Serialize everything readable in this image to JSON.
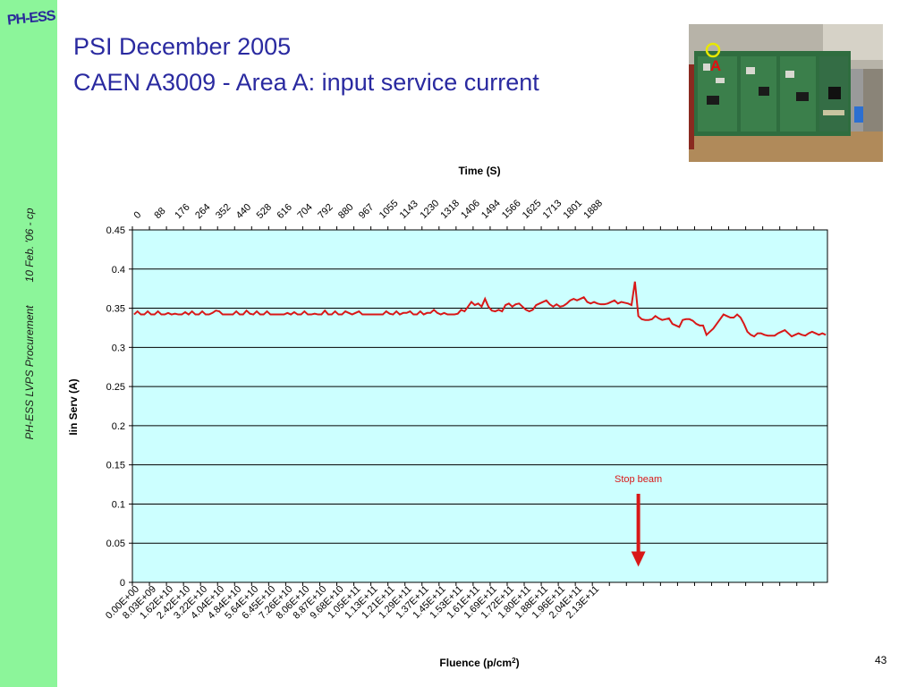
{
  "sidebar": {
    "logo_text": "PH-ESS",
    "vertical_text": "PH-ESS LVPS Procurement",
    "vertical_date": "10 Feb. '06 - cp"
  },
  "title": {
    "line1": "PSI December 2005",
    "line2": "CAEN A3009 - Area A: input service current"
  },
  "photo": {
    "annotation_label": "A",
    "circle_color": "#e8e800",
    "label_color": "#e01010"
  },
  "page_number": "43",
  "colors": {
    "plot_background": "#ccffff",
    "series": "#d81818",
    "annotation": "#d81818",
    "title": "#2a2aa0",
    "sidebar": "#8cf59a"
  },
  "chart_data": {
    "type": "line",
    "top_axis_title": "Time (S)",
    "top_ticks": [
      "0",
      "88",
      "176",
      "264",
      "352",
      "440",
      "528",
      "616",
      "704",
      "792",
      "880",
      "967",
      "1055",
      "1143",
      "1230",
      "1318",
      "1406",
      "1494",
      "1566",
      "1625",
      "1713",
      "1801",
      "1888"
    ],
    "xlabel_prefix": "Fluence (p/cm",
    "xlabel_sup": "2",
    "xlabel_suffix": ")",
    "x_ticks": [
      "0.00E+00",
      "8.03E+09",
      "1.62E+10",
      "2.42E+10",
      "3.22E+10",
      "4.04E+10",
      "4.84E+10",
      "5.64E+10",
      "6.45E+10",
      "7.26E+10",
      "8.06E+10",
      "8.87E+10",
      "9.68E+10",
      "1.05E+11",
      "1.13E+11",
      "1.21E+11",
      "1.29E+11",
      "1.37E+11",
      "1.45E+11",
      "1.53E+11",
      "1.61E+11",
      "1.69E+11",
      "1.72E+11",
      "1.80E+11",
      "1.88E+11",
      "1.96E+11",
      "2.04E+11",
      "2.13E+11"
    ],
    "ylabel": "Iin Serv (A)",
    "ylim": [
      0,
      0.45
    ],
    "y_ticks": [
      "0",
      "0.05",
      "0.1",
      "0.15",
      "0.2",
      "0.25",
      "0.3",
      "0.35",
      "0.4",
      "0.45"
    ],
    "grid": true,
    "values": [
      0.342,
      0.346,
      0.342,
      0.342,
      0.346,
      0.342,
      0.342,
      0.346,
      0.342,
      0.342,
      0.344,
      0.342,
      0.343,
      0.342,
      0.342,
      0.345,
      0.342,
      0.346,
      0.342,
      0.342,
      0.346,
      0.342,
      0.342,
      0.344,
      0.347,
      0.346,
      0.342,
      0.342,
      0.342,
      0.342,
      0.346,
      0.342,
      0.342,
      0.347,
      0.343,
      0.342,
      0.346,
      0.342,
      0.342,
      0.346,
      0.342,
      0.342,
      0.342,
      0.342,
      0.342,
      0.344,
      0.342,
      0.345,
      0.342,
      0.342,
      0.346,
      0.342,
      0.342,
      0.343,
      0.342,
      0.342,
      0.347,
      0.342,
      0.342,
      0.346,
      0.342,
      0.342,
      0.346,
      0.344,
      0.342,
      0.344,
      0.346,
      0.342,
      0.342,
      0.342,
      0.342,
      0.342,
      0.342,
      0.342,
      0.346,
      0.343,
      0.342,
      0.346,
      0.342,
      0.344,
      0.344,
      0.346,
      0.342,
      0.342,
      0.346,
      0.342,
      0.344,
      0.344,
      0.348,
      0.344,
      0.342,
      0.344,
      0.342,
      0.342,
      0.342,
      0.343,
      0.348,
      0.346,
      0.352,
      0.358,
      0.354,
      0.356,
      0.352,
      0.362,
      0.352,
      0.347,
      0.346,
      0.348,
      0.346,
      0.354,
      0.356,
      0.352,
      0.355,
      0.356,
      0.352,
      0.348,
      0.346,
      0.348,
      0.354,
      0.356,
      0.358,
      0.36,
      0.355,
      0.352,
      0.355,
      0.352,
      0.353,
      0.356,
      0.36,
      0.362,
      0.36,
      0.362,
      0.364,
      0.358,
      0.356,
      0.358,
      0.356,
      0.355,
      0.355,
      0.356,
      0.358,
      0.36,
      0.356,
      0.358,
      0.357,
      0.356,
      0.354,
      0.384,
      0.34,
      0.336,
      0.335,
      0.335,
      0.336,
      0.34,
      0.337,
      0.335,
      0.336,
      0.337,
      0.33,
      0.328,
      0.326,
      0.335,
      0.336,
      0.336,
      0.334,
      0.33,
      0.328,
      0.328,
      0.316,
      0.32,
      0.324,
      0.33,
      0.336,
      0.342,
      0.34,
      0.338,
      0.338,
      0.342,
      0.338,
      0.33,
      0.32,
      0.316,
      0.314,
      0.318,
      0.318,
      0.316,
      0.315,
      0.315,
      0.315,
      0.318,
      0.32,
      0.322,
      0.318,
      0.314,
      0.316,
      0.318,
      0.316,
      0.315,
      0.318,
      0.32,
      0.318,
      0.316,
      0.318,
      0.316
    ],
    "annotations": [
      {
        "text": "Stop beam",
        "x_index": 148,
        "arrow_from_value": 0.113,
        "arrow_to_value": 0.02
      }
    ]
  }
}
